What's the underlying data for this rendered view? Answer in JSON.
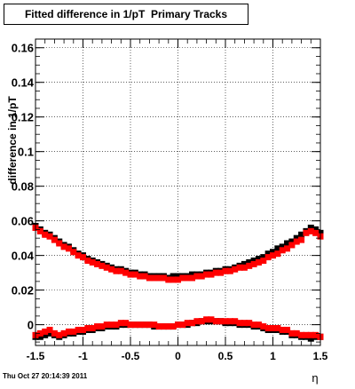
{
  "page": {
    "title": "Fitted difference in 1/pT  Primary Tracks",
    "timestamp": "Thu Oct 27 20:14:39 2011"
  },
  "chart_data": {
    "type": "scatter",
    "xlabel": "η",
    "ylabel": "difference in 1/pT",
    "xlim": [
      -1.5,
      1.5
    ],
    "ylim": [
      -0.012,
      0.165
    ],
    "grid": true,
    "xticks": [
      -1.5,
      -1,
      -0.5,
      0,
      0.5,
      1,
      1.5
    ],
    "xtick_labels": [
      "-1.5",
      "-1",
      "-0.5",
      "0",
      "0.5",
      "1",
      "1.5"
    ],
    "yticks": [
      0,
      0.02,
      0.04,
      0.06,
      0.08,
      0.1,
      0.12,
      0.14,
      0.16
    ],
    "ytick_labels": [
      "0",
      "0.02",
      "0.04",
      "0.06",
      "0.08",
      "0.1",
      "0.12",
      "0.14",
      "0.16"
    ],
    "series": [
      {
        "color": "#000000",
        "marker": "square",
        "x": [
          -1.5,
          -1.45,
          -1.4,
          -1.35,
          -1.3,
          -1.25,
          -1.2,
          -1.15,
          -1.1,
          -1.05,
          -1.0,
          -0.95,
          -0.9,
          -0.85,
          -0.8,
          -0.75,
          -0.7,
          -0.65,
          -0.6,
          -0.55,
          -0.5,
          -0.45,
          -0.4,
          -0.35,
          -0.3,
          -0.25,
          -0.2,
          -0.15,
          -0.1,
          -0.05,
          0.0,
          0.05,
          0.1,
          0.15,
          0.2,
          0.25,
          0.3,
          0.35,
          0.4,
          0.45,
          0.5,
          0.55,
          0.6,
          0.65,
          0.7,
          0.75,
          0.8,
          0.85,
          0.9,
          0.95,
          1.0,
          1.05,
          1.1,
          1.15,
          1.2,
          1.25,
          1.3,
          1.35,
          1.4,
          1.45,
          1.5
        ],
        "upper_y": [
          0.057,
          0.055,
          0.053,
          0.052,
          0.05,
          0.048,
          0.046,
          0.045,
          0.043,
          0.041,
          0.04,
          0.038,
          0.037,
          0.036,
          0.035,
          0.034,
          0.033,
          0.032,
          0.032,
          0.031,
          0.03,
          0.03,
          0.029,
          0.029,
          0.028,
          0.028,
          0.028,
          0.028,
          0.027,
          0.028,
          0.028,
          0.028,
          0.028,
          0.029,
          0.029,
          0.029,
          0.03,
          0.03,
          0.031,
          0.031,
          0.032,
          0.032,
          0.033,
          0.034,
          0.035,
          0.036,
          0.037,
          0.038,
          0.039,
          0.041,
          0.042,
          0.044,
          0.045,
          0.047,
          0.048,
          0.05,
          0.052,
          0.054,
          0.056,
          0.055,
          0.053
        ],
        "lower_y": [
          -0.007,
          -0.007,
          -0.006,
          -0.005,
          -0.006,
          -0.007,
          -0.006,
          -0.005,
          -0.005,
          -0.004,
          -0.004,
          -0.003,
          -0.003,
          -0.002,
          -0.002,
          -0.001,
          -0.001,
          -0.001,
          0.0,
          0.0,
          0.0,
          0.0,
          0.0,
          0.0,
          0.0,
          -0.001,
          -0.001,
          -0.001,
          -0.001,
          -0.001,
          0.0,
          0.0,
          0.0,
          0.001,
          0.001,
          0.002,
          0.002,
          0.002,
          0.002,
          0.002,
          0.001,
          0.001,
          0.001,
          0.0,
          0.0,
          0.0,
          -0.001,
          -0.001,
          -0.002,
          -0.003,
          -0.003,
          -0.003,
          -0.004,
          -0.004,
          -0.006,
          -0.006,
          -0.007,
          -0.007,
          -0.008,
          -0.007,
          -0.007
        ]
      },
      {
        "color": "#ff0000",
        "marker": "square",
        "x": [
          -1.5,
          -1.45,
          -1.4,
          -1.35,
          -1.3,
          -1.25,
          -1.2,
          -1.15,
          -1.1,
          -1.05,
          -1.0,
          -0.95,
          -0.9,
          -0.85,
          -0.8,
          -0.75,
          -0.7,
          -0.65,
          -0.6,
          -0.55,
          -0.5,
          -0.45,
          -0.4,
          -0.35,
          -0.3,
          -0.25,
          -0.2,
          -0.15,
          -0.1,
          -0.05,
          0.0,
          0.05,
          0.1,
          0.15,
          0.2,
          0.25,
          0.3,
          0.35,
          0.4,
          0.45,
          0.5,
          0.55,
          0.6,
          0.65,
          0.7,
          0.75,
          0.8,
          0.85,
          0.9,
          0.95,
          1.0,
          1.05,
          1.1,
          1.15,
          1.2,
          1.25,
          1.3,
          1.35,
          1.4,
          1.45,
          1.5
        ],
        "upper_y": [
          0.056,
          0.054,
          0.052,
          0.051,
          0.049,
          0.047,
          0.045,
          0.044,
          0.042,
          0.04,
          0.039,
          0.037,
          0.036,
          0.035,
          0.034,
          0.033,
          0.032,
          0.031,
          0.031,
          0.03,
          0.029,
          0.029,
          0.028,
          0.028,
          0.027,
          0.027,
          0.027,
          0.027,
          0.026,
          0.026,
          0.026,
          0.027,
          0.027,
          0.027,
          0.028,
          0.028,
          0.029,
          0.029,
          0.03,
          0.03,
          0.031,
          0.031,
          0.032,
          0.033,
          0.033,
          0.034,
          0.035,
          0.036,
          0.037,
          0.039,
          0.04,
          0.041,
          0.043,
          0.044,
          0.046,
          0.048,
          0.049,
          0.053,
          0.054,
          0.053,
          0.051
        ],
        "lower_y": [
          -0.006,
          -0.005,
          -0.004,
          -0.003,
          -0.005,
          -0.006,
          -0.005,
          -0.004,
          -0.004,
          -0.003,
          -0.003,
          -0.002,
          -0.002,
          -0.001,
          -0.001,
          0.0,
          0.0,
          0.0,
          0.001,
          0.001,
          0.0,
          0.0,
          0.0,
          0.0,
          0.0,
          0.0,
          -0.001,
          -0.001,
          -0.001,
          -0.001,
          0.0,
          0.0,
          0.001,
          0.001,
          0.002,
          0.002,
          0.003,
          0.003,
          0.002,
          0.002,
          0.002,
          0.002,
          0.002,
          0.001,
          0.001,
          0.001,
          0.0,
          0.0,
          -0.001,
          -0.002,
          -0.002,
          -0.002,
          -0.003,
          -0.003,
          -0.005,
          -0.005,
          -0.006,
          -0.006,
          -0.006,
          -0.006,
          -0.007
        ]
      }
    ]
  }
}
